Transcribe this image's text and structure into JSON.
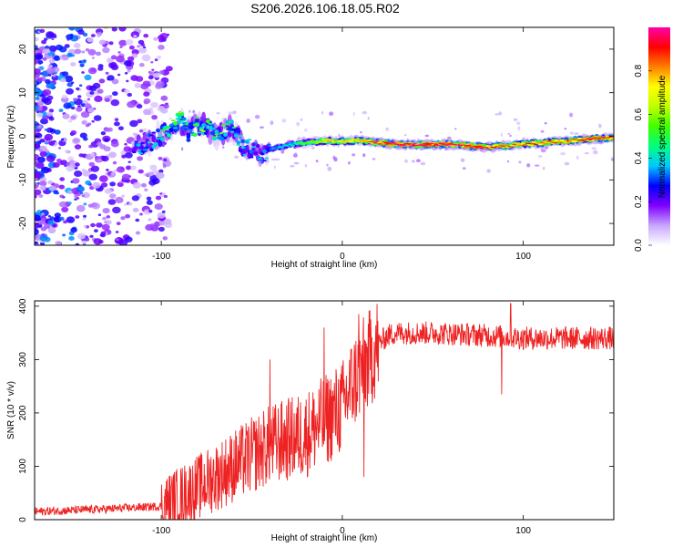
{
  "title": "S206.2026.106.18.05.R02",
  "chart_data": [
    {
      "type": "heatmap",
      "name": "spectrogram",
      "xlabel": "Height of straight line (km)",
      "ylabel": "Frequency (Hz)",
      "xlim": [
        -170,
        150
      ],
      "ylim": [
        -25,
        25
      ],
      "xticks": [
        -100,
        0,
        100
      ],
      "yticks": [
        -20,
        -10,
        0,
        10,
        20
      ],
      "colorbar": {
        "label": "Normalized spectral amplitude",
        "range": [
          0,
          1
        ],
        "ticks": [
          0.0,
          0.2,
          0.4,
          0.6,
          0.8
        ],
        "tick_labels": [
          "0.0",
          "0.2",
          "0.4",
          "0.6",
          "0.8"
        ],
        "colors": [
          "#ffffff",
          "#c7a6ff",
          "#8000ff",
          "#0000ff",
          "#00c8ff",
          "#00ff80",
          "#40ff00",
          "#c0ff00",
          "#ffff00",
          "#ff8000",
          "#ff0000",
          "#ff00aa"
        ]
      },
      "ridge": {
        "points": [
          [
            -115,
            -2.5
          ],
          [
            -105,
            -1
          ],
          [
            -95,
            2
          ],
          [
            -90,
            4
          ],
          [
            -85,
            1
          ],
          [
            -78,
            3
          ],
          [
            -70,
            0
          ],
          [
            -62,
            2
          ],
          [
            -55,
            -2
          ],
          [
            -50,
            -3
          ],
          [
            -45,
            -4
          ],
          [
            -40,
            -3
          ],
          [
            -30,
            -2
          ],
          [
            -20,
            -1.5
          ],
          [
            -10,
            -1
          ],
          [
            0,
            -1.2
          ],
          [
            10,
            -1
          ],
          [
            20,
            -1.5
          ],
          [
            40,
            -2
          ],
          [
            60,
            -1.8
          ],
          [
            80,
            -2.5
          ],
          [
            95,
            -2
          ],
          [
            110,
            -1.5
          ],
          [
            125,
            -1
          ],
          [
            140,
            -0.5
          ],
          [
            150,
            -0.3
          ]
        ],
        "peak_amplitude": [
          0.3,
          0.35,
          0.45,
          0.5,
          0.4,
          0.5,
          0.45,
          0.45,
          0.35,
          0.3,
          0.3,
          0.35,
          0.4,
          0.55,
          0.7,
          0.75,
          0.8,
          0.95,
          1.0,
          0.95,
          0.9,
          0.85,
          0.85,
          0.85,
          0.9,
          0.9
        ]
      }
    },
    {
      "type": "line",
      "name": "snr",
      "xlabel": "Height of straight line (km)",
      "ylabel": "SNR (10 * v/v)",
      "xlim": [
        -170,
        150
      ],
      "ylim": [
        0,
        410
      ],
      "xticks": [
        -100,
        0,
        100
      ],
      "yticks": [
        0,
        100,
        200,
        300,
        400
      ],
      "color": "#ee2222",
      "trend": {
        "x": [
          -170,
          -130,
          -100,
          -80,
          -60,
          -40,
          -20,
          0,
          5,
          10,
          15,
          20,
          25,
          30,
          50,
          80,
          100,
          120,
          150
        ],
        "y": [
          15,
          20,
          25,
          60,
          100,
          140,
          160,
          210,
          250,
          280,
          300,
          330,
          345,
          350,
          350,
          345,
          340,
          340,
          340
        ]
      },
      "spikes": [
        {
          "x": -40,
          "y": 300
        },
        {
          "x": -10,
          "y": 360
        },
        {
          "x": 9,
          "y": 385
        },
        {
          "x": 12,
          "y": 80
        },
        {
          "x": 88,
          "y": 235
        },
        {
          "x": 93,
          "y": 405
        }
      ]
    }
  ]
}
